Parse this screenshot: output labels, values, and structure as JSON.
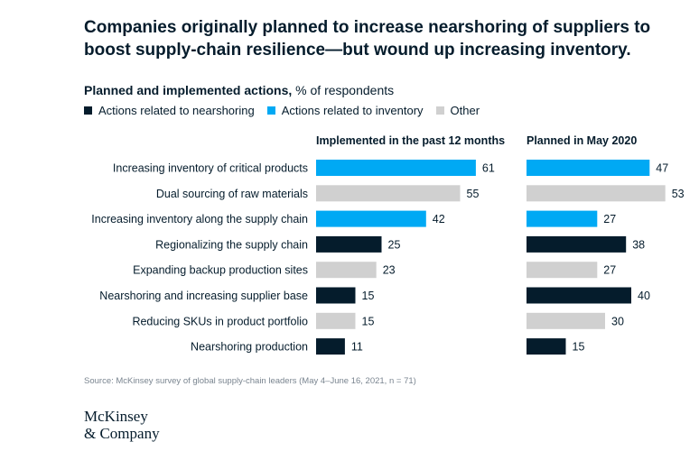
{
  "title": "Companies originally planned to increase nearshoring of suppliers to boost supply-chain resilience—but wound up increasing inventory.",
  "subtitle": {
    "main": "Planned and implemented actions,",
    "unit": " % of respondents"
  },
  "legend": [
    {
      "label": "Actions related to nearshoring",
      "color": "#051c2c"
    },
    {
      "label": "Actions related to inventory",
      "color": "#00a9f4"
    },
    {
      "label": "Other",
      "color": "#d0d0d0"
    }
  ],
  "source": "Source: McKinsey survey of global supply-chain leaders (May 4–June 16, 2021, n = 71)",
  "logo": {
    "line1": "McKinsey",
    "line2": "& Company"
  },
  "chart_data": {
    "type": "bar",
    "orientation": "horizontal",
    "categories": [
      "Increasing inventory of critical products",
      "Dual sourcing of raw materials",
      "Increasing inventory along the supply chain",
      "Regionalizing the supply chain",
      "Expanding backup production sites",
      "Nearshoring and increasing supplier base",
      "Reducing SKUs in product portfolio",
      "Nearshoring production"
    ],
    "groups": [
      "inventory",
      "other",
      "inventory",
      "nearshoring",
      "other",
      "nearshoring",
      "other",
      "nearshoring"
    ],
    "colors": {
      "nearshoring": "#051c2c",
      "inventory": "#00a9f4",
      "other": "#d0d0d0"
    },
    "panels": [
      {
        "title": "Implemented in the past 12 months",
        "values": [
          61,
          55,
          42,
          25,
          23,
          15,
          15,
          11
        ]
      },
      {
        "title": "Planned in May 2020",
        "values": [
          47,
          53,
          27,
          38,
          27,
          40,
          30,
          15
        ]
      }
    ]
  }
}
